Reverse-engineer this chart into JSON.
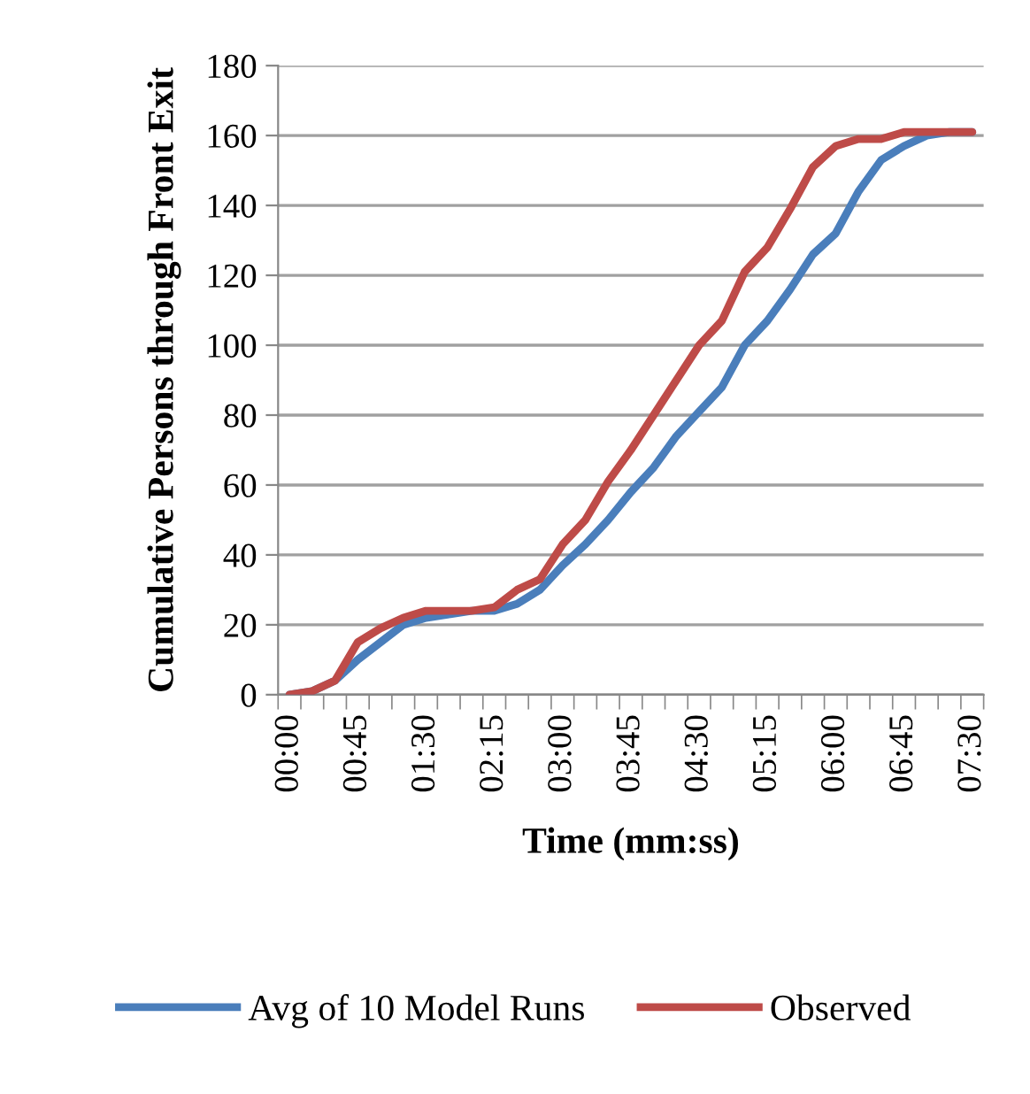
{
  "chart_data": {
    "type": "line",
    "xlabel": "Time (mm:ss)",
    "ylabel": "Cumulative Persons through Front Exit",
    "categories": [
      "00:00",
      null,
      null,
      "00:45",
      null,
      null,
      "01:30",
      null,
      null,
      "02:15",
      null,
      null,
      "03:00",
      null,
      null,
      "03:45",
      null,
      null,
      "04:30",
      null,
      null,
      "05:15",
      null,
      null,
      "06:00",
      null,
      null,
      "06:45",
      null,
      null,
      "07:30"
    ],
    "series": [
      {
        "name": "Avg of 10 Model Runs",
        "color": "#4a7ebb",
        "values": [
          0,
          1,
          4,
          10,
          15,
          20,
          22,
          23,
          24,
          24,
          26,
          30,
          37,
          43,
          50,
          58,
          65,
          74,
          81,
          88,
          100,
          107,
          116,
          126,
          132,
          144,
          153,
          157,
          160,
          161,
          161
        ]
      },
      {
        "name": "Observed",
        "color": "#be4b48",
        "values": [
          0,
          1,
          4,
          15,
          19,
          22,
          24,
          24,
          24,
          25,
          30,
          33,
          43,
          50,
          61,
          70,
          80,
          90,
          100,
          107,
          121,
          128,
          139,
          151,
          157,
          159,
          159,
          161,
          161,
          161,
          161
        ]
      }
    ],
    "ylim": [
      0,
      180
    ],
    "yticks": [
      0,
      20,
      40,
      60,
      80,
      100,
      120,
      140,
      160,
      180
    ],
    "grid": "y",
    "legend": "bottom",
    "line_style": "solid",
    "marker": "none"
  }
}
